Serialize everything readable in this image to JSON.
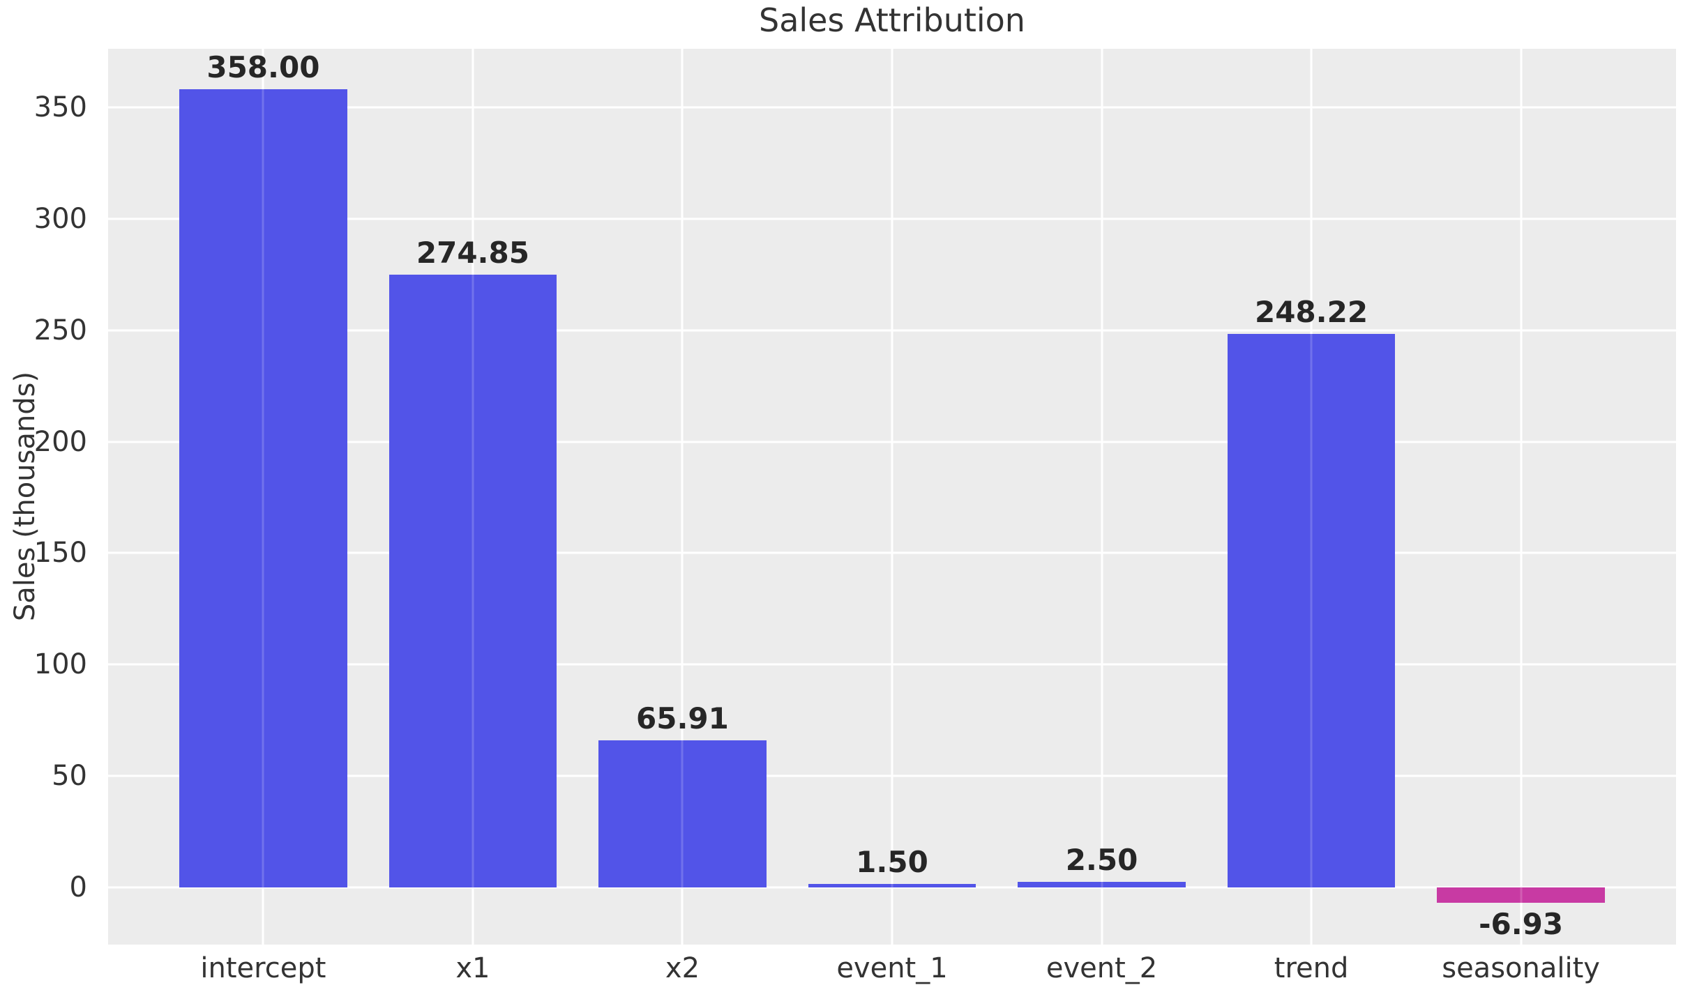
{
  "chart_data": {
    "type": "bar",
    "title": "Sales Attribution",
    "xlabel": "",
    "ylabel": "Sales (thousands)",
    "categories": [
      "intercept",
      "x1",
      "x2",
      "event_1",
      "event_2",
      "trend",
      "seasonality"
    ],
    "values": [
      358.0,
      274.85,
      65.91,
      1.5,
      2.5,
      248.22,
      -6.93
    ],
    "value_labels": [
      "358.00",
      "274.85",
      "65.91",
      "1.50",
      "2.50",
      "248.22",
      "-6.93"
    ],
    "bar_colors": [
      "#5254e8",
      "#5254e8",
      "#5254e8",
      "#5254e8",
      "#5254e8",
      "#5254e8",
      "#c83aa3"
    ],
    "yticks": [
      0,
      50,
      100,
      150,
      200,
      250,
      300,
      350
    ],
    "ylim": [
      -25.6,
      376.2
    ],
    "grid": true,
    "legend": false,
    "plot_bg_color": "#ececec",
    "grid_color": "#ffffff",
    "tick_text_color": "#333333",
    "value_label_color": "#262626",
    "title_color": "#333333"
  }
}
